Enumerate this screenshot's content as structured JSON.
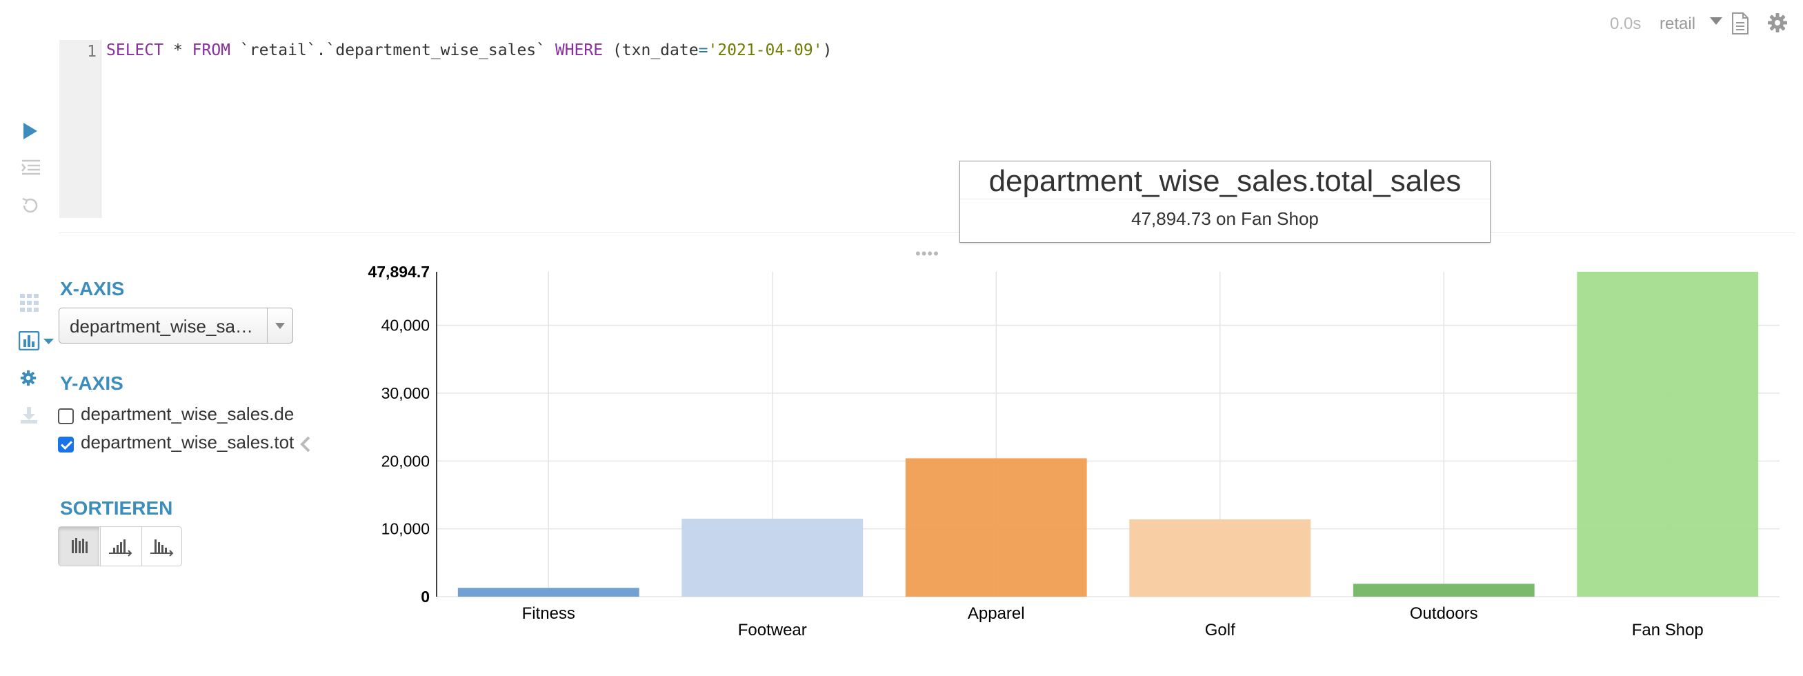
{
  "toolbar": {
    "exec_time": "0.0s",
    "database": "retail",
    "doc_icon": "document-icon",
    "settings_icon": "gear-icon"
  },
  "editor": {
    "line_number": "1",
    "query_parts": {
      "select": "SELECT",
      "star": " * ",
      "from": "FROM",
      "table": " `retail`.`department_wise_sales` ",
      "where": "WHERE",
      "open": " (",
      "col": "txn_date",
      "eq": "=",
      "value": "'2021-04-09'",
      "close": ")"
    }
  },
  "side_icons": [
    "play-icon",
    "format-icon",
    "history-icon",
    "grid-icon",
    "bar-chart-icon",
    "settings-icon",
    "download-icon"
  ],
  "chart_settings": {
    "x_axis_label": "X-AXIS",
    "x_axis_value": "department_wise_sales.department_name",
    "y_axis_label": "Y-AXIS",
    "y_options": [
      {
        "label": "department_wise_sales.de",
        "checked": false
      },
      {
        "label": "department_wise_sales.tot",
        "checked": true
      }
    ],
    "sort_label": "SORTIEREN"
  },
  "tooltip": {
    "title": "department_wise_sales.total_sales",
    "value": "47,894.73 on Fan Shop"
  },
  "chart_data": {
    "type": "bar",
    "categories": [
      "Fitness",
      "Footwear",
      "Apparel",
      "Golf",
      "Outdoors",
      "Fan Shop"
    ],
    "series": [
      {
        "values": [
          1300,
          11500,
          20400,
          11400,
          1900,
          47894.73
        ]
      }
    ],
    "colors": [
      "#6b9bd1",
      "#c3d5ec",
      "#f09e52",
      "#f8cba0",
      "#74b565",
      "#a4dd8f"
    ],
    "ylim": [
      0,
      47894.73
    ],
    "y_ticks": [
      0,
      10000,
      20000,
      30000,
      40000
    ],
    "y_tick_labels": [
      "0",
      "10,000",
      "20,000",
      "30,000",
      "40,000"
    ],
    "y_max_label": "47,894.7",
    "grid": true,
    "xlabel": "",
    "ylabel": ""
  }
}
